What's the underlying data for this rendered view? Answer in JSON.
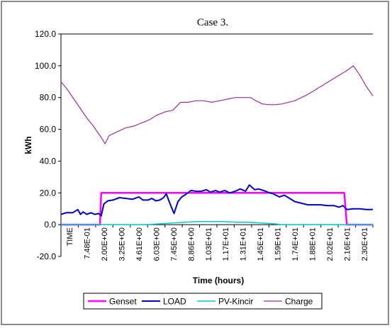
{
  "chart_data": {
    "type": "line",
    "title": "Case 3.",
    "xlabel": "Time (hours)",
    "ylabel": "kWh",
    "ylim": [
      -20,
      120
    ],
    "yticks": [
      "-20.0",
      "0.0",
      "20.0",
      "40.0",
      "60.0",
      "80.0",
      "100.0",
      "120.0"
    ],
    "grid": "horizontal major gridline at 120.0 only",
    "legend_position": "bottom",
    "x_labels": [
      "TIME",
      "7.48E-01",
      "2.00E+00",
      "3.25E+00",
      "4.61E+00",
      "6.03E+00",
      "7.45E+00",
      "8.86E+00",
      "1.03E+01",
      "1.17E+01",
      "1.31E+01",
      "1.45E+01",
      "1.59E+01",
      "1.74E+01",
      "1.88E+01",
      "2.02E+01",
      "2.16E+01",
      "2.30E+01"
    ],
    "x_range_hours": [
      0,
      24
    ],
    "series": [
      {
        "name": "Genset",
        "color": "#ff00ff",
        "x": [
          0,
          3.0,
          3.1,
          21.8,
          22.0,
          24
        ],
        "y": [
          0,
          0,
          20,
          20,
          0,
          0
        ]
      },
      {
        "name": "LOAD",
        "color": "#0000cc",
        "x": [
          0,
          0.4,
          0.9,
          1.3,
          1.5,
          1.7,
          2.0,
          2.3,
          2.6,
          2.9,
          3.1,
          3.3,
          3.6,
          4.0,
          4.5,
          5.0,
          5.5,
          6.0,
          6.3,
          6.7,
          7.0,
          7.3,
          7.6,
          7.9,
          8.1,
          8.4,
          8.7,
          9.0,
          9.3,
          9.6,
          10.0,
          10.4,
          10.8,
          11.2,
          11.5,
          11.9,
          12.2,
          12.6,
          13.0,
          13.4,
          13.8,
          14.2,
          14.5,
          14.9,
          15.2,
          15.6,
          15.9,
          16.3,
          16.8,
          17.2,
          17.6,
          18.0,
          18.5,
          19.0,
          19.5,
          20.0,
          20.5,
          21.0,
          21.4,
          21.7,
          22.0,
          22.5,
          23.0,
          23.5,
          24.0
        ],
        "y": [
          6.5,
          7.5,
          7.5,
          9.5,
          6.5,
          8.0,
          6.5,
          7.5,
          6.5,
          7.0,
          5.5,
          13.0,
          15.0,
          15.5,
          17.0,
          16.5,
          16.0,
          17.5,
          15.5,
          15.5,
          16.5,
          15.0,
          15.5,
          17.0,
          19.5,
          13.0,
          7.0,
          14.5,
          17.5,
          19.0,
          21.5,
          21.0,
          21.0,
          22.0,
          20.5,
          21.5,
          20.5,
          21.5,
          20.0,
          21.0,
          22.5,
          21.0,
          25.0,
          22.0,
          22.5,
          21.5,
          20.5,
          19.5,
          17.5,
          18.5,
          16.5,
          14.5,
          13.5,
          12.5,
          12.5,
          12.5,
          12.0,
          12.0,
          11.0,
          12.0,
          9.5,
          10.0,
          10.0,
          9.5,
          9.5
        ]
      },
      {
        "name": "PV-Kincir",
        "color": "#00cccc",
        "x": [
          0,
          6.5,
          7.5,
          8.5,
          9.5,
          10.5,
          11.5,
          12.5,
          13.5,
          14.5,
          15.5,
          16.5,
          17.0,
          24
        ],
        "y": [
          0,
          0,
          0.5,
          1.0,
          1.5,
          2.0,
          2.0,
          2.0,
          1.5,
          1.5,
          1.0,
          0.5,
          0,
          0
        ]
      },
      {
        "name": "Charge",
        "color": "#993399",
        "x": [
          0,
          0.5,
          1.0,
          1.5,
          2.0,
          2.5,
          3.0,
          3.4,
          3.7,
          4.2,
          5.0,
          5.6,
          6.2,
          6.8,
          7.4,
          8.0,
          8.6,
          9.2,
          9.8,
          10.4,
          11.0,
          11.6,
          12.2,
          12.8,
          13.4,
          14.0,
          14.6,
          15.0,
          15.5,
          16.0,
          16.5,
          17.0,
          17.5,
          18.0,
          18.5,
          19.0,
          19.6,
          20.2,
          20.8,
          21.4,
          22.0,
          22.5,
          23.0,
          23.5,
          24.0
        ],
        "y": [
          90,
          85,
          79,
          73,
          67,
          62,
          56,
          51,
          56,
          58,
          61,
          62,
          64,
          66,
          69,
          71,
          72,
          77,
          77,
          78,
          78,
          77,
          78,
          79,
          80,
          80,
          80,
          78,
          76,
          75.5,
          75.5,
          76,
          77,
          78,
          80,
          82,
          85,
          88,
          91,
          94,
          97,
          100,
          94,
          87,
          81
        ]
      }
    ]
  }
}
